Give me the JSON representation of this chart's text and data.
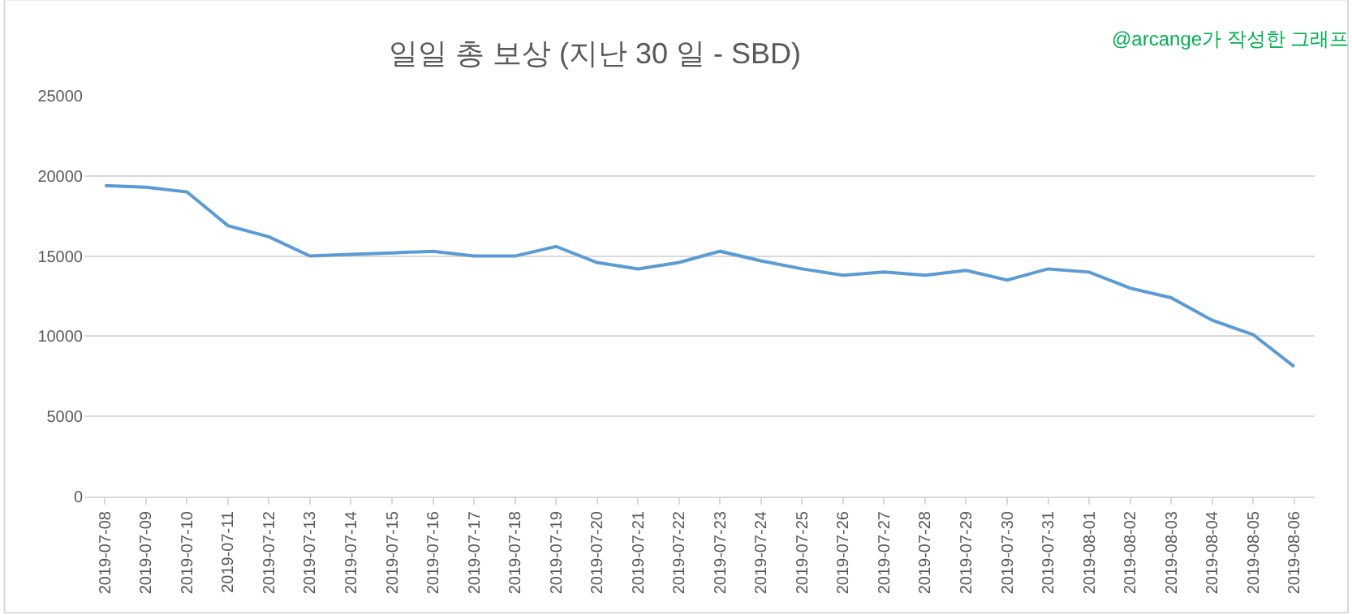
{
  "chart_data": {
    "type": "line",
    "title": "일일 총 보상 (지난 30 일 - SBD)",
    "annotations": [
      "@arcange가 작성한 그래프"
    ],
    "categories": [
      "2019-07-08",
      "2019-07-09",
      "2019-07-10",
      "2019-07-11",
      "2019-07-12",
      "2019-07-13",
      "2019-07-14",
      "2019-07-15",
      "2019-07-16",
      "2019-07-17",
      "2019-07-18",
      "2019-07-19",
      "2019-07-20",
      "2019-07-21",
      "2019-07-22",
      "2019-07-23",
      "2019-07-24",
      "2019-07-25",
      "2019-07-26",
      "2019-07-27",
      "2019-07-28",
      "2019-07-29",
      "2019-07-30",
      "2019-07-31",
      "2019-08-01",
      "2019-08-02",
      "2019-08-03",
      "2019-08-04",
      "2019-08-05",
      "2019-08-06"
    ],
    "series": [
      {
        "color": "#5b9bd5",
        "values": [
          19400,
          19300,
          19000,
          16900,
          16200,
          15000,
          15100,
          15200,
          15300,
          15000,
          15000,
          15600,
          14600,
          14200,
          14600,
          15300,
          14700,
          14200,
          13800,
          14000,
          13800,
          14100,
          13500,
          14200,
          14000,
          13000,
          12400,
          11000,
          10100,
          8100
        ]
      }
    ],
    "ylim": [
      0,
      25000
    ],
    "yticks": [
      0,
      5000,
      10000,
      15000,
      20000,
      25000
    ],
    "grid": "y"
  }
}
